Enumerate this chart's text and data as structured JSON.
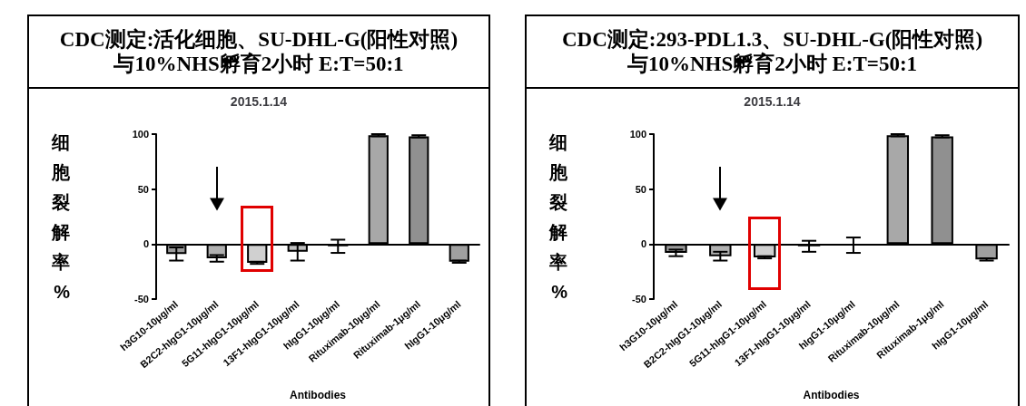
{
  "chart_data": [
    {
      "type": "bar",
      "title": "CDC测定:活化细胞、SU-DHL-G(阳性对照)与10%NHS孵育2小时 E:T=50:1",
      "subtitle": "2015.1.14",
      "xlabel": "Antibodies",
      "ylabel": "细胞裂解率%",
      "categories": [
        "h3G10-10μg/ml",
        "B2C2-hIgG1-10μg/ml",
        "5G11-hIgG1-10μg/ml",
        "13F1-hIgG1-10μg/ml",
        "hIgG1-10μg/ml",
        "Rituximab-10μg/ml",
        "Rituximab-1μg/ml",
        "hIgG1-10μg/ml"
      ],
      "values": [
        -9,
        -13,
        -17,
        -7,
        -2,
        99,
        98,
        -16
      ],
      "errors": [
        6,
        3,
        1,
        8,
        6,
        1,
        1,
        1
      ],
      "colors": [
        "#9a9a9a",
        "#b0b0b0",
        "#d0d0d0",
        "#c0c0c0",
        "#e0e0e0",
        "#a8a8a8",
        "#909090",
        "#a0a0a0"
      ],
      "ylim": [
        -50,
        100
      ],
      "yticks": [
        -50,
        0,
        50,
        100
      ]
    },
    {
      "type": "bar",
      "title": "CDC测定:293-PDL1.3、SU-DHL-G(阳性对照)与10%NHS孵育2小时 E:T=50:1",
      "subtitle": "2015.1.14",
      "xlabel": "Antibodies",
      "ylabel": "细胞裂解率%",
      "categories": [
        "h3G10-10μg/ml",
        "B2C2-hIgG1-10μg/ml",
        "5G11-hIgG1-10μg/ml",
        "13F1-hIgG1-10μg/ml",
        "hIgG1-10μg/ml",
        "Rituximab-10μg/ml",
        "Rituximab-1μg/ml",
        "hIgG1-10μg/ml"
      ],
      "values": [
        -8,
        -11,
        -12,
        -2,
        -1,
        99,
        98,
        -14
      ],
      "errors": [
        3,
        4,
        1,
        5,
        7,
        1,
        1,
        1
      ],
      "colors": [
        "#9a9a9a",
        "#b0b0b0",
        "#d0d0d0",
        "#c0c0c0",
        "#000000",
        "#a8a8a8",
        "#909090",
        "#a0a0a0"
      ],
      "ylim": [
        -50,
        100
      ],
      "yticks": [
        -50,
        0,
        50,
        100
      ]
    }
  ]
}
